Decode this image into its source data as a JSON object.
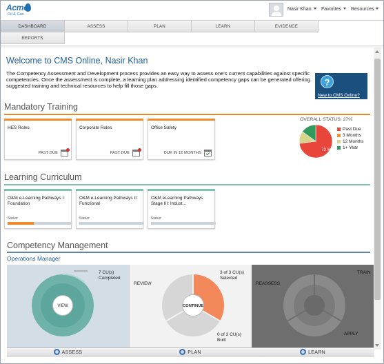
{
  "header": {
    "logo_name": "Acme",
    "logo_sub": "Oil & Gas",
    "user_name": "Nasir Khan",
    "favorites": "Favorites",
    "resources": "Resources"
  },
  "nav": {
    "tabs": [
      "DASHBOARD",
      "ASSESS",
      "PLAN",
      "LEARN",
      "EVIDENCE",
      "REPORTS"
    ],
    "active": "DASHBOARD"
  },
  "welcome": {
    "title": "Welcome to CMS Online, Nasir Khan",
    "intro": "The Competency Assessment and Development process provides an easy way to assess one's current capabilities against specific competencies. Once the assessment is complete, a learning plan addressing identified competency gaps can be generated offering suggested training and technical resources to help fill those gaps.",
    "help_label": "New to CMS Online?"
  },
  "mandatory_training": {
    "title": "Mandatory Training",
    "cards": [
      {
        "title": "HES Roles",
        "status": "PAST DUE"
      },
      {
        "title": "Corporate Roles",
        "status": "PAST DUE"
      },
      {
        "title": "Office Safety",
        "status": "DUE IN 12 MONTHS"
      }
    ],
    "overall_status_label": "OVERALL STATUS: 27%",
    "legend": [
      {
        "label": "Past Due",
        "color": "#e8463b"
      },
      {
        "label": "3 Months",
        "color": "#f0903a"
      },
      {
        "label": "12 Months",
        "color": "#d6d58a"
      },
      {
        "label": "1+ Year",
        "color": "#2f9a5c"
      }
    ],
    "pie_label": "73 %"
  },
  "chart_data": {
    "type": "pie",
    "title": "OVERALL STATUS: 27%",
    "slices": [
      {
        "name": "Past Due",
        "value": 73,
        "color": "#e8463b"
      },
      {
        "name": "3 Months",
        "value": 0,
        "color": "#f0903a"
      },
      {
        "name": "12 Months",
        "value": 12,
        "color": "#d6d58a"
      },
      {
        "name": "1+ Year",
        "value": 15,
        "color": "#2f9a5c"
      }
    ],
    "data_labels": [
      "73 %"
    ],
    "legend_position": "right"
  },
  "learning_curriculum": {
    "title": "Learning Curriculum",
    "status_label": "Status:",
    "cards": [
      {
        "title": "O&M e-Learning Pathways I: Foundation",
        "progress": 0.4
      },
      {
        "title": "O&M e-Learning Pathways II: Functional",
        "progress": 0
      },
      {
        "title": "O&M eLearning Pathways Stage III: Indust...",
        "progress": 0
      }
    ]
  },
  "competency": {
    "title": "Competency Management",
    "role": "Operations Manager",
    "assess": {
      "completed_text": "7 CU(s) Completed",
      "button": "VIEW",
      "footer": "ASSESS"
    },
    "plan": {
      "review_label": "REVIEW",
      "selected_text": "3 of 3 CU(s) Selected",
      "built_text": "0 of 3 CU(s) Built",
      "button": "CONTINUE",
      "footer": "PLAN"
    },
    "learn": {
      "reassess_label": "REASSESS",
      "train_label": "TRAIN",
      "apply_label": "APPLY",
      "footer": "LEARN"
    }
  }
}
